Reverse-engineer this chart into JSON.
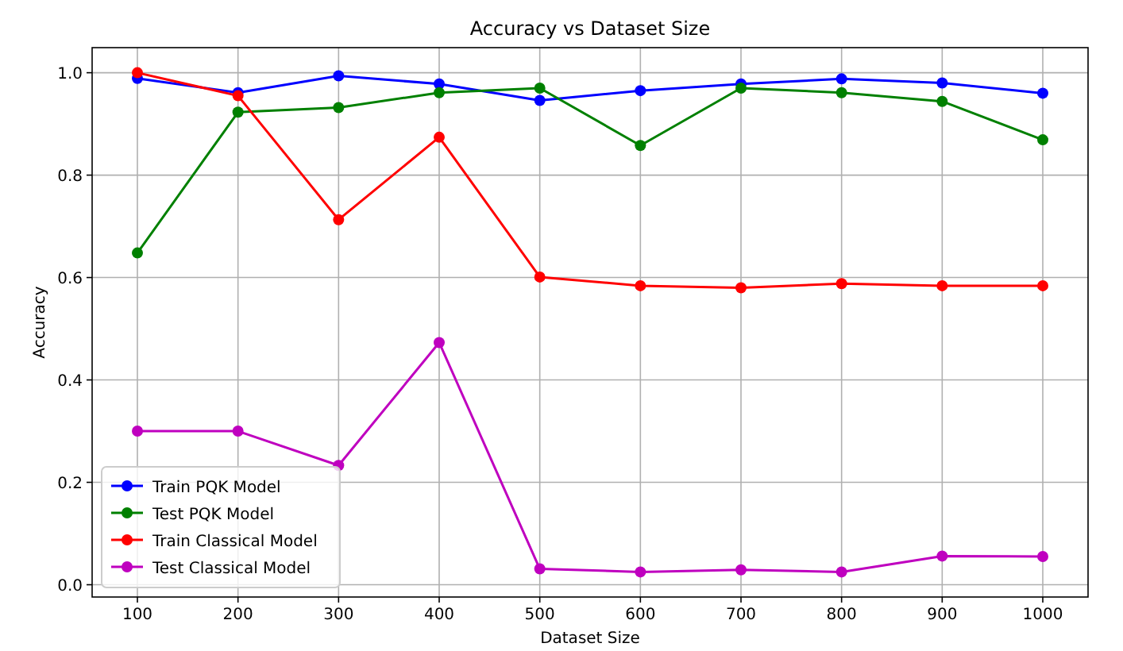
{
  "chart_data": {
    "type": "line",
    "title": "Accuracy vs Dataset Size",
    "xlabel": "Dataset Size",
    "ylabel": "Accuracy",
    "x": [
      100,
      200,
      300,
      400,
      500,
      600,
      700,
      800,
      900,
      1000
    ],
    "series": [
      {
        "name": "Train PQK Model",
        "color": "#0000ff",
        "values": [
          0.989,
          0.961,
          0.994,
          0.978,
          0.946,
          0.965,
          0.978,
          0.988,
          0.98,
          0.96
        ]
      },
      {
        "name": "Test PQK Model",
        "color": "#008000",
        "values": [
          0.648,
          0.923,
          0.932,
          0.961,
          0.97,
          0.858,
          0.97,
          0.961,
          0.944,
          0.869
        ]
      },
      {
        "name": "Train Classical Model",
        "color": "#ff0000",
        "values": [
          1.0,
          0.955,
          0.713,
          0.874,
          0.601,
          0.584,
          0.58,
          0.588,
          0.584,
          0.584
        ]
      },
      {
        "name": "Test Classical Model",
        "color": "#bf00bf",
        "values": [
          0.3,
          0.3,
          0.233,
          0.473,
          0.031,
          0.025,
          0.029,
          0.025,
          0.056,
          0.055
        ]
      }
    ],
    "xlim": [
      55,
      1045
    ],
    "ylim": [
      -0.024,
      1.049
    ],
    "xticks": [
      100,
      200,
      300,
      400,
      500,
      600,
      700,
      800,
      900,
      1000
    ],
    "yticks": [
      {
        "value": 0,
        "label": "0.0"
      },
      {
        "value": 0.2,
        "label": "0.2"
      },
      {
        "value": 0.4,
        "label": "0.4"
      },
      {
        "value": 0.6,
        "label": "0.6"
      },
      {
        "value": 0.8,
        "label": "0.8"
      },
      {
        "value": 1,
        "label": "1.0"
      }
    ],
    "grid": true,
    "legend": "bottom left",
    "marker": "circle",
    "line_style": "solid"
  }
}
